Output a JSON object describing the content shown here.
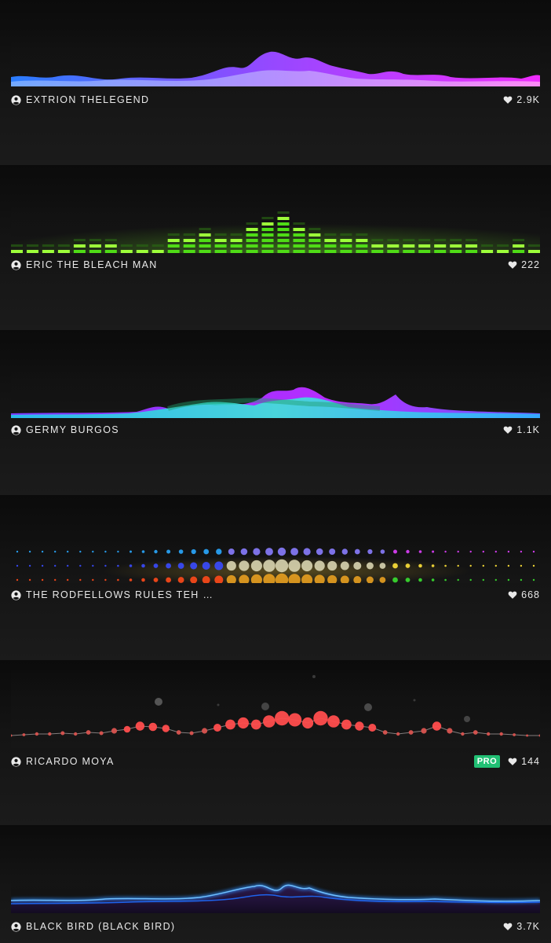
{
  "feed": {
    "items": [
      {
        "author": "EXTRION THELEGEND",
        "likes": "2.9K",
        "pro": false,
        "visualizer": "layered-waves"
      },
      {
        "author": "ERIC THE BLEACH MAN",
        "likes": "222",
        "pro": false,
        "visualizer": "segmented-bars"
      },
      {
        "author": "GERMY BURGOS",
        "likes": "1.1K",
        "pro": false,
        "visualizer": "glow-waves"
      },
      {
        "author": "THE RODFELLOWS RULES TEH …",
        "likes": "668",
        "pro": false,
        "visualizer": "dot-matrix"
      },
      {
        "author": "RICARDO MOYA",
        "likes": "144",
        "pro": true,
        "pro_label": "PRO",
        "visualizer": "particle-line"
      },
      {
        "author": "BLACK BIRD (BLACK BIRD)",
        "likes": "3.7K",
        "pro": false,
        "visualizer": "neon-lines"
      }
    ]
  },
  "icons": {
    "author": "user-circle-icon",
    "likes": "heart-icon"
  },
  "colors": {
    "background": "#0d0d0d",
    "text": "#e9e9e9",
    "pro_badge": "#21c074",
    "wave_purple": "#8e4bff",
    "wave_magenta": "#e02cff",
    "wave_blue": "#3b5bff",
    "bars_green": "#5dff1a",
    "glow_cyan": "#37e0e8",
    "particle_red": "#ff4a4a",
    "neon_blue": "#2f8fff"
  }
}
